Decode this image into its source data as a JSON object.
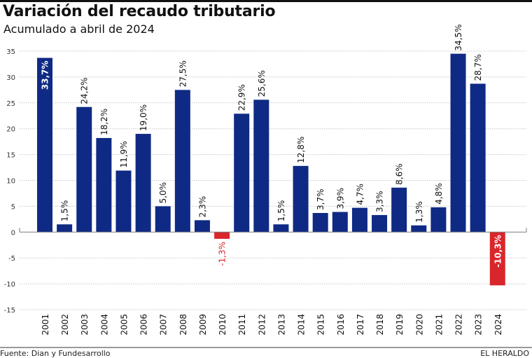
{
  "header": {
    "title": "Variación del recaudo tributario",
    "subtitle": "Acumulado a abril de 2024"
  },
  "footer": {
    "source": "Fuente: Dian y Fundesarrollo",
    "brand": "EL HERALDO"
  },
  "colors": {
    "positive": "#0f2a84",
    "negative": "#d9262b",
    "grid": "#c8c8c8",
    "axis": "#7a7a7a"
  },
  "chart_data": {
    "type": "bar",
    "title": "Variación del recaudo tributario",
    "subtitle": "Acumulado a abril de 2024",
    "xlabel": "",
    "ylabel": "",
    "ylim": [
      -15,
      35
    ],
    "yticks": [
      35,
      30,
      25,
      20,
      15,
      10,
      5,
      0,
      -5,
      -10,
      -15
    ],
    "grid": true,
    "legend": "none",
    "categories": [
      "2001",
      "2002",
      "2003",
      "2004",
      "2005",
      "2006",
      "2007",
      "2008",
      "2009",
      "2010",
      "2011",
      "2012",
      "2013",
      "2014",
      "2015",
      "2016",
      "2017",
      "2018",
      "2019",
      "2020",
      "2021",
      "2022",
      "2023",
      "2024"
    ],
    "values": [
      33.7,
      1.5,
      24.2,
      18.2,
      11.9,
      19.0,
      5.0,
      27.5,
      2.3,
      -1.3,
      22.9,
      25.6,
      1.5,
      12.8,
      3.7,
      3.9,
      4.7,
      3.3,
      8.6,
      1.3,
      4.8,
      34.5,
      28.7,
      -10.3
    ],
    "labels": [
      "33,7%",
      "1,5%",
      "24,2%",
      "18,2%",
      "11,9%",
      "19,0%",
      "5,0%",
      "27,5%",
      "2,3%",
      "-1,3%",
      "22,9%",
      "25,6%",
      "1,5%",
      "12,8%",
      "3,7%",
      "3,9%",
      "4,7%",
      "3,3%",
      "8,6%",
      "1,3%",
      "4,8%",
      "34,5%",
      "28,7%",
      "-10,3%"
    ],
    "label_inside": [
      "2001",
      "2024"
    ]
  }
}
